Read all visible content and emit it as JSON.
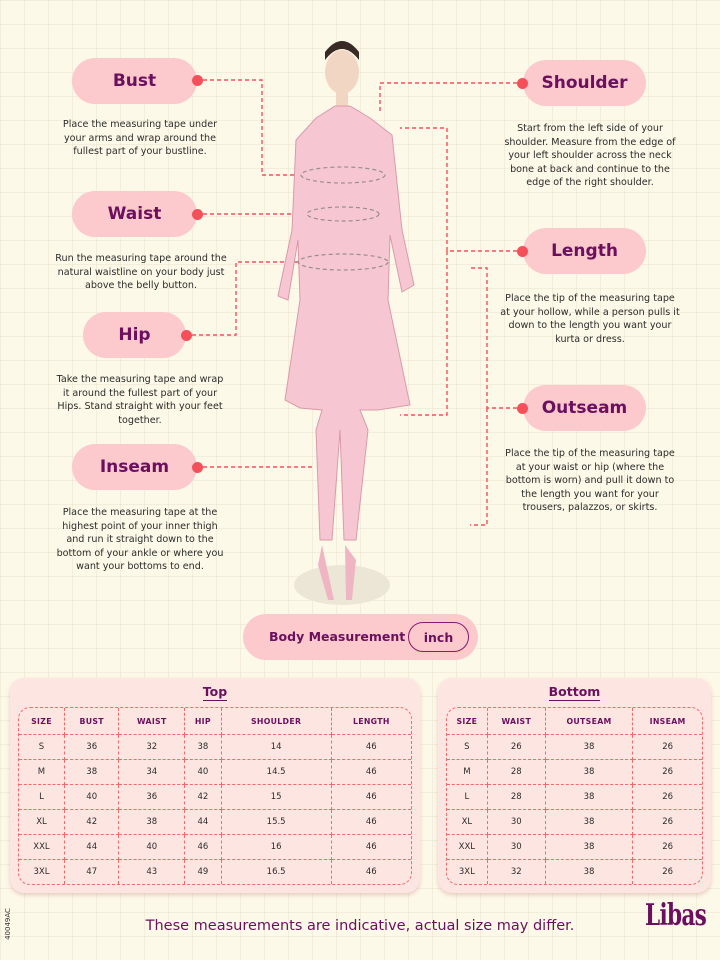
{
  "colors": {
    "background": "#fdf9e8",
    "pill": "#fcc9cc",
    "accent_text": "#6b0f5e",
    "connector": "#f5505a",
    "table_bg": "#fde6e2"
  },
  "measurements": {
    "bust": {
      "label": "Bust",
      "description": "Place the measuring tape under your arms and wrap around the fullest part of your bustline."
    },
    "waist": {
      "label": "Waist",
      "description": "Run the measuring tape around the natural waistline on your body just above the belly button."
    },
    "hip": {
      "label": "Hip",
      "description": "Take the measuring tape and wrap it around the fullest part of your Hips. Stand straight with your feet together."
    },
    "inseam": {
      "label": "Inseam",
      "description": "Place the measuring tape at the highest point of your inner thigh and run it straight down to the bottom of your ankle or where you want your bottoms to end."
    },
    "shoulder": {
      "label": "Shoulder",
      "description": "Start from the left side of your shoulder. Measure from the edge of your left shoulder across the neck bone at back and continue to the edge of the right shoulder."
    },
    "length": {
      "label": "Length",
      "description": "Place the tip of the measuring tape at your hollow, while a person pulls it down to the length you want your kurta or dress."
    },
    "outseam": {
      "label": "Outseam",
      "description": "Place the tip of the measuring tape at your waist or hip (where the bottom is worn) and pull it down to the length you want for your trousers, palazzos, or skirts."
    }
  },
  "body_measurement": {
    "label": "Body Measurement",
    "unit": "inch"
  },
  "top_table": {
    "title": "Top",
    "headers": [
      "SIZE",
      "BUST",
      "WAIST",
      "HIP",
      "SHOULDER",
      "LENGTH"
    ],
    "rows": [
      [
        "S",
        "36",
        "32",
        "38",
        "14",
        "46"
      ],
      [
        "M",
        "38",
        "34",
        "40",
        "14.5",
        "46"
      ],
      [
        "L",
        "40",
        "36",
        "42",
        "15",
        "46"
      ],
      [
        "XL",
        "42",
        "38",
        "44",
        "15.5",
        "46"
      ],
      [
        "XXL",
        "44",
        "40",
        "46",
        "16",
        "46"
      ],
      [
        "3XL",
        "47",
        "43",
        "49",
        "16.5",
        "46"
      ]
    ]
  },
  "bottom_table": {
    "title": "Bottom",
    "headers": [
      "SIZE",
      "WAIST",
      "OUTSEAM",
      "INSEAM"
    ],
    "rows": [
      [
        "S",
        "26",
        "38",
        "26"
      ],
      [
        "M",
        "28",
        "38",
        "26"
      ],
      [
        "L",
        "28",
        "38",
        "26"
      ],
      [
        "XL",
        "30",
        "38",
        "26"
      ],
      [
        "XXL",
        "30",
        "38",
        "26"
      ],
      [
        "3XL",
        "32",
        "38",
        "26"
      ]
    ]
  },
  "footer": {
    "disclaimer": "These measurements are indicative, actual size may differ.",
    "brand": "Libas",
    "code": "40049AC"
  }
}
